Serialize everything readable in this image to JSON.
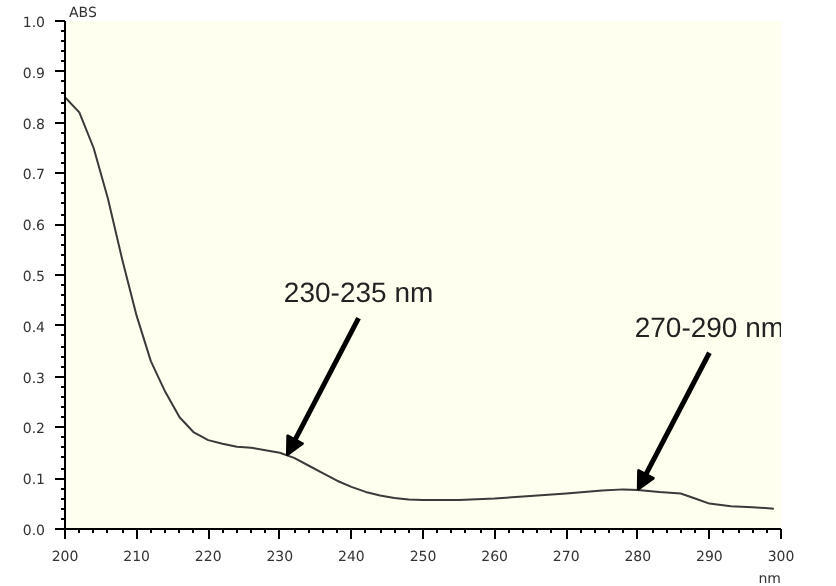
{
  "chart_data": {
    "type": "line",
    "xlabel": "nm",
    "ylabel": "ABS",
    "x": [
      200,
      202,
      204,
      206,
      208,
      210,
      212,
      214,
      216,
      218,
      220,
      222,
      224,
      226,
      228,
      230,
      232,
      234,
      236,
      238,
      240,
      242,
      244,
      246,
      248,
      250,
      255,
      260,
      265,
      270,
      275,
      278,
      280,
      283,
      286,
      288,
      290,
      293,
      296,
      299
    ],
    "series": [
      {
        "color": "#3a3a3a",
        "values": [
          0.85,
          0.82,
          0.75,
          0.65,
          0.53,
          0.42,
          0.33,
          0.27,
          0.22,
          0.19,
          0.175,
          0.168,
          0.162,
          0.16,
          0.155,
          0.15,
          0.14,
          0.125,
          0.11,
          0.095,
          0.083,
          0.073,
          0.066,
          0.061,
          0.058,
          0.057,
          0.057,
          0.06,
          0.065,
          0.07,
          0.076,
          0.078,
          0.077,
          0.073,
          0.07,
          0.06,
          0.05,
          0.045,
          0.043,
          0.04
        ]
      }
    ],
    "xlim": [
      200,
      300
    ],
    "ylim": [
      0,
      1.0
    ],
    "xticks": [
      200,
      210,
      220,
      230,
      240,
      250,
      260,
      270,
      280,
      290,
      300
    ],
    "yticks": [
      {
        "value": 0,
        "label": "0.0"
      },
      0.1,
      0.2,
      0.3,
      0.4,
      0.5,
      0.6,
      0.7,
      0.8,
      0.9,
      {
        "value": 1.0,
        "label": "1.0"
      }
    ],
    "grid": false,
    "marker": "none",
    "line_style": "solid",
    "annotations": [
      {
        "text": "230-235 nm",
        "x": 231,
        "y": 0.145
      },
      {
        "text": "270-290 nm",
        "x": 280,
        "y": 0.077
      }
    ]
  }
}
